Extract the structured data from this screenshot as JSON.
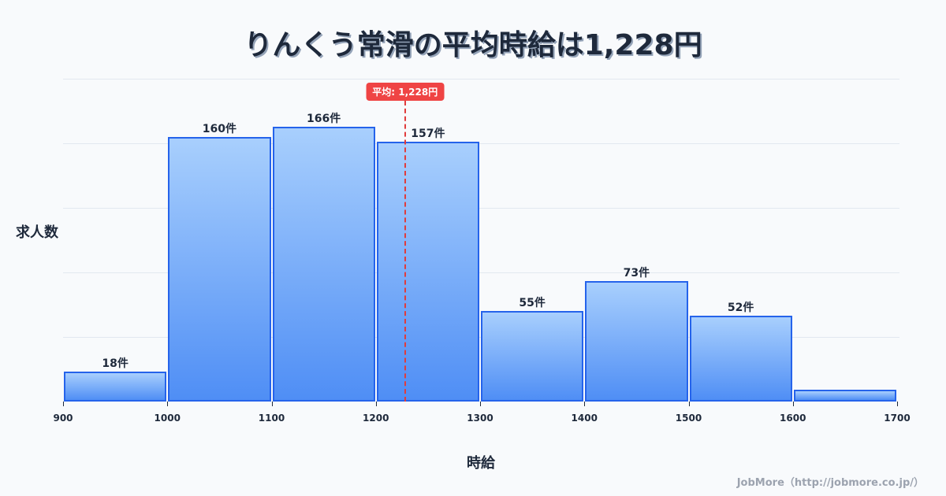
{
  "title": "りんくう常滑の平均時給は1,228円",
  "ylabel": "求人数",
  "xlabel": "時給",
  "footer": "JobMore（http://jobmore.co.jp/）",
  "mean_badge": "平均: 1,228円",
  "colors": {
    "bar_border": "#2563eb",
    "bar_top": "#a8cffd",
    "bar_bottom": "#4f8ef5",
    "mean_line": "#e03c3c",
    "badge_bg": "#ef4444",
    "text": "#1e293b",
    "grid": "#e2e8f0"
  },
  "chart_data": {
    "type": "bar",
    "title": "りんくう常滑の平均時給は1,228円",
    "xlabel": "時給",
    "ylabel": "求人数",
    "categories": [
      "900-1000",
      "1000-1100",
      "1100-1200",
      "1200-1300",
      "1300-1400",
      "1400-1500",
      "1500-1600",
      "1600-1700"
    ],
    "bins": [
      [
        900,
        1000
      ],
      [
        1000,
        1100
      ],
      [
        1100,
        1200
      ],
      [
        1200,
        1300
      ],
      [
        1300,
        1400
      ],
      [
        1400,
        1500
      ],
      [
        1500,
        1600
      ],
      [
        1600,
        1700
      ]
    ],
    "values": [
      18,
      160,
      166,
      157,
      55,
      73,
      52,
      7
    ],
    "labels": [
      "18件",
      "160件",
      "166件",
      "157件",
      "55件",
      "73件",
      "52件",
      ""
    ],
    "x_ticks": [
      "900",
      "1000",
      "1100",
      "1200",
      "1300",
      "1400",
      "1500",
      "1600",
      "1700"
    ],
    "xlim": [
      900,
      1700
    ],
    "ylim": [
      0,
      195
    ],
    "grid": true,
    "mean": 1228,
    "mean_label": "平均: 1,228円"
  }
}
